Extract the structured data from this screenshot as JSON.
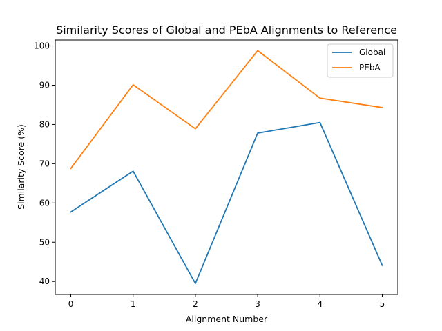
{
  "chart_data": {
    "type": "line",
    "title": "Similarity Scores of Global and PEbA Alignments to Reference",
    "xlabel": "Alignment Number",
    "ylabel": "Similarity Score (%)",
    "x": [
      0,
      1,
      2,
      3,
      4,
      5
    ],
    "xticks": [
      "0",
      "1",
      "2",
      "3",
      "4",
      "5"
    ],
    "yticks": [
      "40",
      "50",
      "60",
      "70",
      "80",
      "90",
      "100"
    ],
    "xlim": [
      -0.25,
      5.25
    ],
    "ylim": [
      36.7,
      101.5
    ],
    "grid": false,
    "legend_position": "top-right",
    "series": [
      {
        "name": "Global",
        "color": "#1f77b4",
        "values": [
          57.7,
          68.1,
          39.5,
          77.8,
          80.5,
          44.1
        ]
      },
      {
        "name": "PEbA",
        "color": "#ff7f0e",
        "values": [
          68.8,
          90.1,
          78.9,
          98.8,
          86.7,
          84.3
        ]
      }
    ]
  }
}
